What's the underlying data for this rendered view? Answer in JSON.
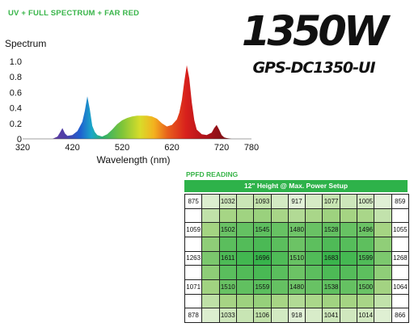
{
  "header": {
    "tagline": "UV + FULL SPECTRUM + FAR RED",
    "model": "1350W",
    "submodel": "GPS-DC1350-UI"
  },
  "chart_data": [
    {
      "type": "area",
      "title": "",
      "ylabel": "Spectrum",
      "xlabel": "Wavelength (nm)",
      "xlim": [
        320,
        780
      ],
      "ylim": [
        0,
        1.0
      ],
      "x_ticks": [
        "320",
        "420",
        "520",
        "620",
        "720",
        "780"
      ],
      "y_ticks": [
        "0",
        "0.2",
        "0.4",
        "0.6",
        "0.8",
        "1.0"
      ],
      "grid": false,
      "x": [
        380,
        390,
        395,
        400,
        405,
        410,
        420,
        430,
        440,
        445,
        450,
        455,
        460,
        465,
        470,
        480,
        490,
        500,
        510,
        520,
        530,
        540,
        550,
        560,
        570,
        580,
        590,
        600,
        610,
        620,
        630,
        635,
        640,
        645,
        650,
        655,
        660,
        665,
        670,
        680,
        690,
        700,
        705,
        710,
        715,
        720,
        725,
        730,
        740,
        750
      ],
      "values": [
        0.0,
        0.03,
        0.08,
        0.14,
        0.07,
        0.04,
        0.05,
        0.1,
        0.22,
        0.36,
        0.55,
        0.38,
        0.17,
        0.09,
        0.05,
        0.03,
        0.06,
        0.12,
        0.19,
        0.24,
        0.27,
        0.29,
        0.3,
        0.3,
        0.3,
        0.29,
        0.26,
        0.2,
        0.16,
        0.18,
        0.25,
        0.34,
        0.5,
        0.74,
        0.95,
        0.78,
        0.47,
        0.24,
        0.12,
        0.06,
        0.05,
        0.08,
        0.14,
        0.18,
        0.12,
        0.05,
        0.02,
        0.01,
        0.0,
        0.0
      ]
    },
    {
      "type": "table",
      "title": "PPFD READING",
      "subtitle": "12\" Height @ Max. Power Setup",
      "rows": [
        [
          "875",
          "1032",
          "1093",
          "917",
          "1077",
          "1005",
          "859"
        ],
        [
          "1059",
          "1502",
          "1545",
          "1480",
          "1528",
          "1496",
          "1055"
        ],
        [
          "1263",
          "1611",
          "1696",
          "1510",
          "1683",
          "1599",
          "1268"
        ],
        [
          "1071",
          "1510",
          "1559",
          "1480",
          "1538",
          "1500",
          "1064"
        ],
        [
          "878",
          "1033",
          "1106",
          "918",
          "1041",
          "1014",
          "866"
        ]
      ]
    }
  ]
}
